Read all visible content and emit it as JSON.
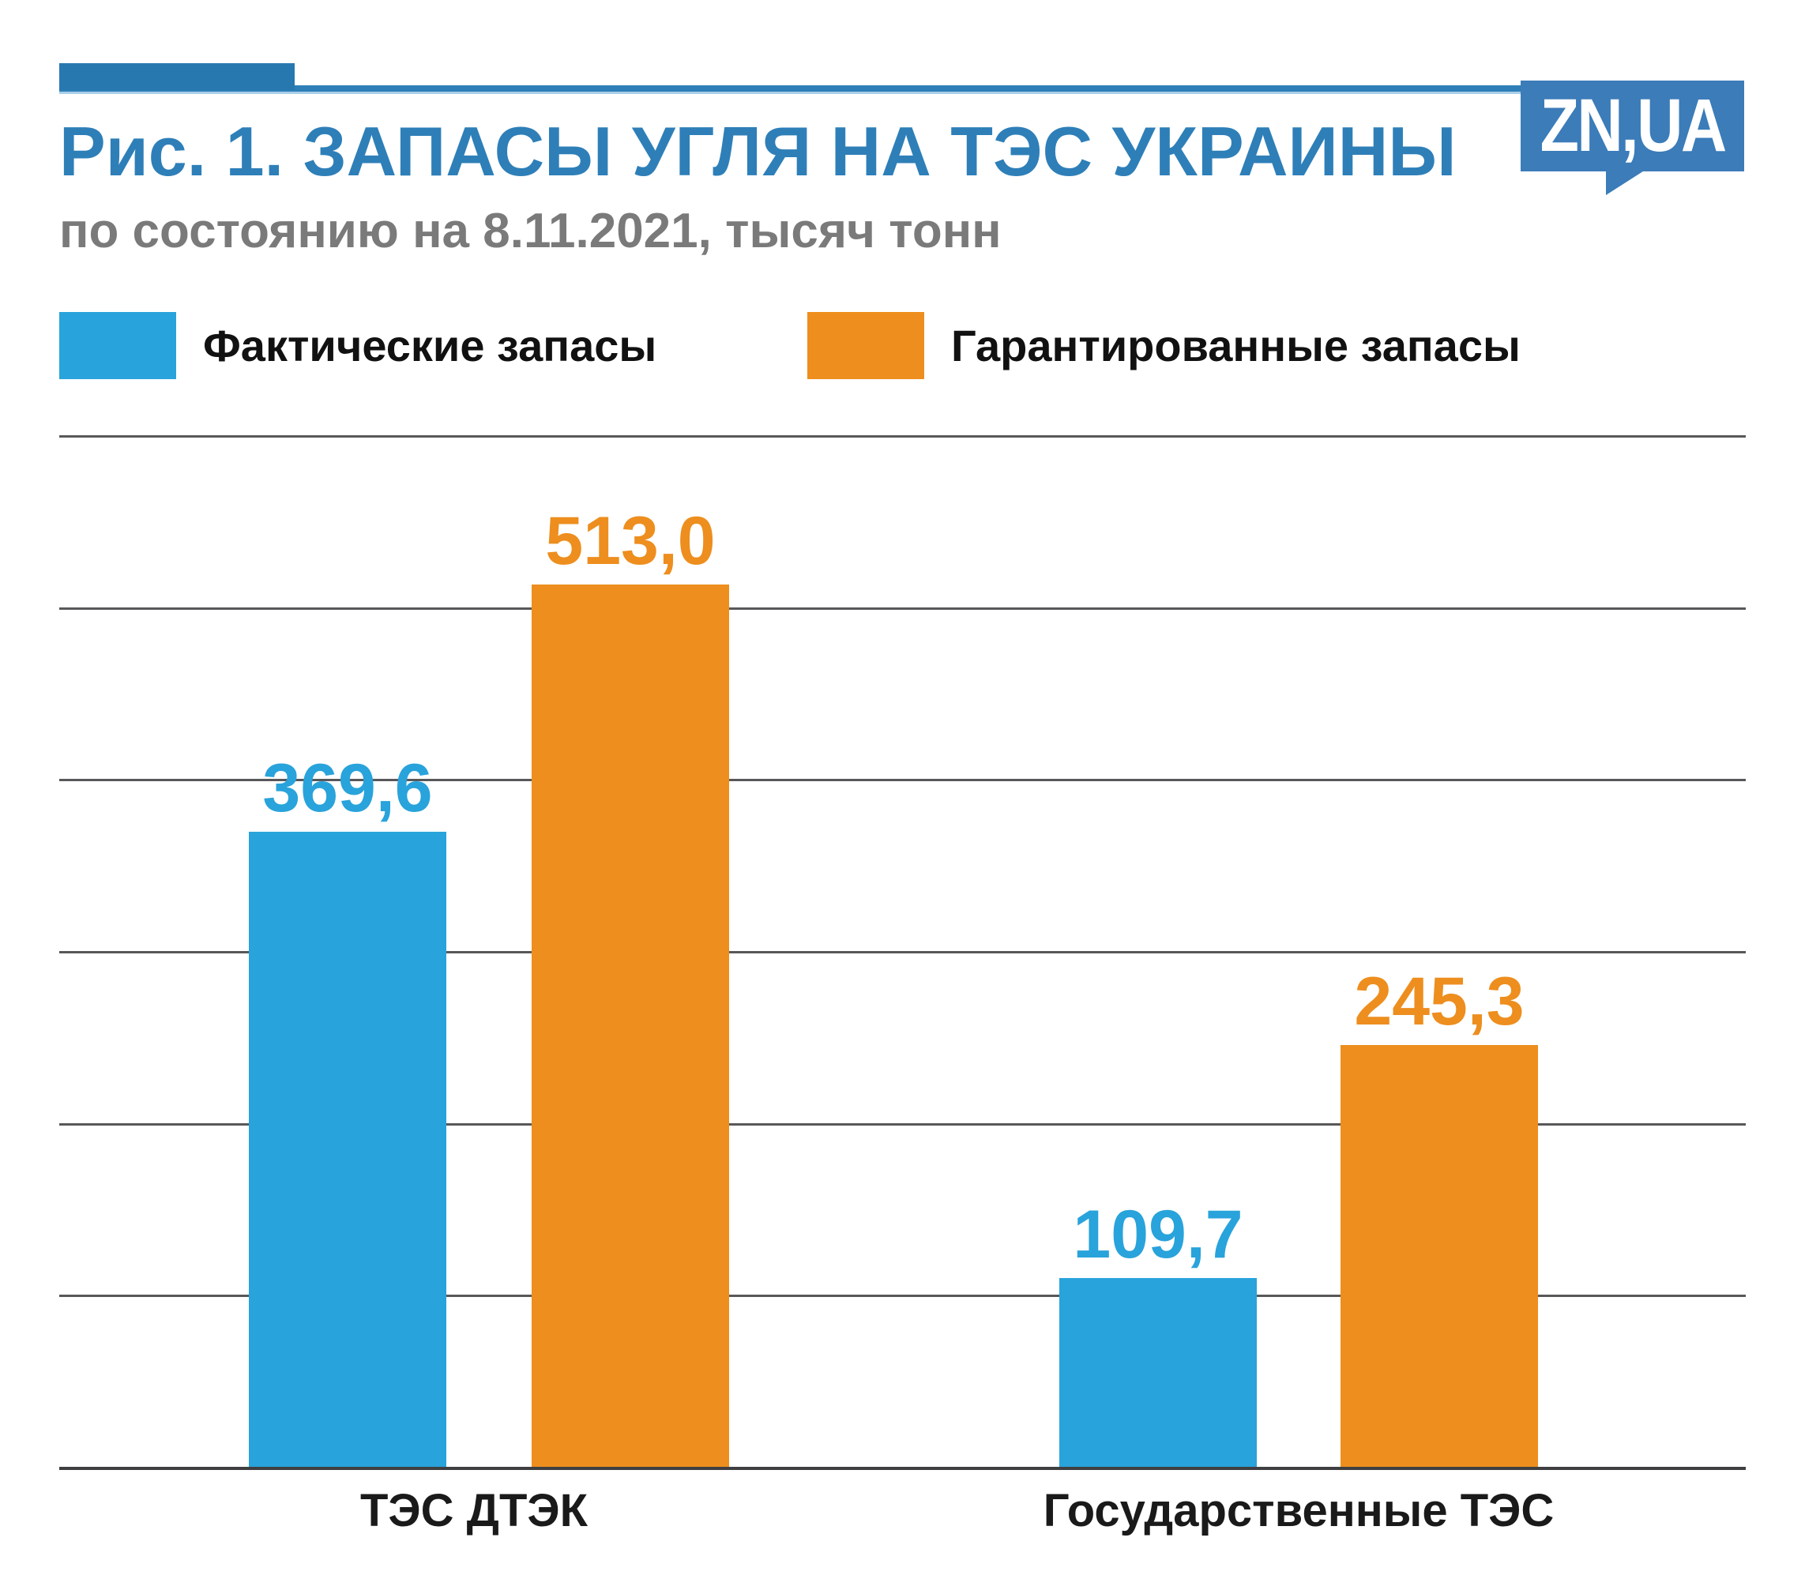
{
  "header": {
    "title": "Рис. 1. ЗАПАСЫ УГЛЯ НА ТЭС УКРАИНЫ",
    "subtitle": "по состоянию на 8.11.2021, тысяч тонн",
    "logo_text": "ZN,UA"
  },
  "colors": {
    "title_blue": "#2E7FB8",
    "accent_bar_blue": "#2878B0",
    "logo_blue": "#3B7CB9",
    "bar_blue": "#29A3DB",
    "bar_orange": "#ED8E1E",
    "subtitle_gray": "#7A7A7A",
    "gridline_gray": "#58585A",
    "label_black": "#111111"
  },
  "legend": [
    {
      "label": "Фактические запасы",
      "color": "#29A3DB"
    },
    {
      "label": "Гарантированные запасы",
      "color": "#ED8E1E"
    }
  ],
  "chart_data": {
    "type": "bar",
    "title": "Рис. 1. ЗАПАСЫ УГЛЯ НА ТЭС УКРАИНЫ",
    "subtitle": "по состоянию на 8.11.2021, тысяч тонн",
    "unit": "тысяч тонн",
    "categories": [
      "ТЭС ДТЭК",
      "Государственные ТЭС"
    ],
    "series": [
      {
        "name": "Фактические запасы",
        "color": "#29A3DB",
        "values": [
          369.6,
          109.7
        ],
        "display": [
          "369,6",
          "109,7"
        ]
      },
      {
        "name": "Гарантированные запасы",
        "color": "#ED8E1E",
        "values": [
          513.0,
          245.3
        ],
        "display": [
          "513,0",
          "245,3"
        ]
      }
    ],
    "ylim": [
      0,
      600
    ],
    "grid_step": 100,
    "grid": true,
    "y_tick_labels_shown": false,
    "legend_position": "top",
    "value_labels": true
  }
}
